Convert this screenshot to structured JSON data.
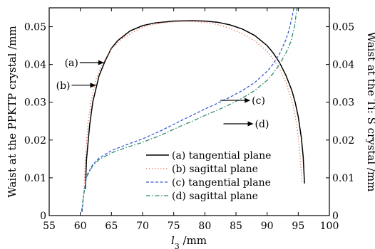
{
  "chart_data": {
    "type": "line",
    "xlabel_main": "l",
    "xlabel_sub": "3",
    "xlabel_unit": " /mm",
    "ylabel_left": "Waist at the PPKTP crystal /mm",
    "ylabel_right": "Waist at the Ti: S crystal /mm",
    "xlim": [
      55,
      100
    ],
    "ylim": [
      0,
      0.055
    ],
    "xticks": [
      "55",
      "60",
      "65",
      "70",
      "75",
      "80",
      "85",
      "90",
      "95",
      "100"
    ],
    "yticks_left": [
      "0",
      "0.01",
      "0.02",
      "0.03",
      "0.04",
      "0.05"
    ],
    "yticks_right": [
      "0",
      "0.01",
      "0.02",
      "0.03",
      "0.04",
      "0.05"
    ],
    "grid": false,
    "legend_position": "bottom-right",
    "series": [
      {
        "name": "(a) tangential plane",
        "label": "(a)",
        "color": "#000000",
        "dash": "solid",
        "axis": "left",
        "x": [
          60.8,
          61.0,
          61.5,
          62.0,
          63.0,
          64.0,
          65.0,
          66.0,
          68.0,
          70.0,
          72.0,
          75.0,
          78.0,
          80.0,
          82.0,
          84.0,
          86.0,
          88.0,
          90.0,
          91.0,
          92.0,
          93.0,
          94.0,
          94.5,
          95.0,
          95.5,
          95.8,
          96.0
        ],
        "y": [
          0.007,
          0.015,
          0.024,
          0.03,
          0.037,
          0.041,
          0.0443,
          0.0463,
          0.0489,
          0.0503,
          0.051,
          0.0515,
          0.0516,
          0.0515,
          0.0512,
          0.0505,
          0.0494,
          0.0477,
          0.045,
          0.043,
          0.0405,
          0.0372,
          0.033,
          0.03,
          0.0262,
          0.0206,
          0.0155,
          0.0085
        ]
      },
      {
        "name": "(b) sagittal plane",
        "label": "(b)",
        "color": "#e8684a",
        "dash": "dotted",
        "axis": "left",
        "x": [
          60.6,
          60.8,
          61.2,
          61.7,
          62.5,
          63.5,
          65.0,
          67.0,
          70.0,
          73.0,
          76.0,
          78.0,
          80.0,
          82.0,
          84.0,
          86.0,
          88.0,
          90.0,
          91.0,
          92.0,
          93.0,
          94.0,
          94.5,
          95.0,
          95.3,
          95.6
        ],
        "y": [
          0.007,
          0.015,
          0.024,
          0.03,
          0.036,
          0.04,
          0.0442,
          0.0472,
          0.0499,
          0.051,
          0.0514,
          0.0514,
          0.0512,
          0.0506,
          0.0496,
          0.0482,
          0.0463,
          0.0435,
          0.0414,
          0.0388,
          0.0353,
          0.0303,
          0.0265,
          0.021,
          0.0155,
          0.0085
        ]
      },
      {
        "name": "(c) tangential plane",
        "label": "(c)",
        "color": "#3b5bdb",
        "dash": "dashed",
        "axis": "right",
        "x": [
          60.3,
          60.5,
          61.0,
          62.0,
          63.0,
          65.0,
          67.0,
          70.0,
          73.0,
          76.0,
          78.0,
          80.0,
          82.0,
          84.0,
          86.0,
          88.0,
          90.0,
          91.0,
          92.0,
          93.0,
          93.5,
          94.0,
          94.3
        ],
        "y": [
          0.001,
          0.005,
          0.0105,
          0.0135,
          0.0152,
          0.0172,
          0.0185,
          0.0203,
          0.0225,
          0.025,
          0.0266,
          0.0282,
          0.0297,
          0.0313,
          0.0331,
          0.0352,
          0.0382,
          0.0402,
          0.0428,
          0.0465,
          0.049,
          0.0525,
          0.055
        ]
      },
      {
        "name": "(d) sagittal plane",
        "label": "(d)",
        "color": "#2e8b6e",
        "dash": "dashdot",
        "axis": "right",
        "x": [
          60.2,
          60.5,
          61.0,
          62.0,
          63.0,
          65.0,
          67.0,
          70.0,
          73.0,
          76.0,
          78.0,
          80.0,
          82.0,
          84.0,
          86.0,
          88.0,
          90.0,
          91.0,
          92.0,
          93.0,
          93.8,
          94.4,
          94.8
        ],
        "y": [
          0.001,
          0.005,
          0.0102,
          0.0132,
          0.0148,
          0.0166,
          0.0178,
          0.0194,
          0.0213,
          0.0236,
          0.025,
          0.0265,
          0.0279,
          0.0294,
          0.0311,
          0.0331,
          0.0358,
          0.0377,
          0.04,
          0.043,
          0.046,
          0.05,
          0.055
        ]
      }
    ],
    "annotations": [
      {
        "text": "(a)",
        "arrow_tip": [
          63.8,
          0.0405
        ],
        "side": "left"
      },
      {
        "text": "(b)",
        "arrow_tip": [
          62.5,
          0.0345
        ],
        "side": "left"
      },
      {
        "text": "(c)",
        "arrow_tip": [
          82.5,
          0.0305
        ],
        "side": "right"
      },
      {
        "text": "(d)",
        "arrow_tip": [
          83.0,
          0.0243
        ],
        "side": "right"
      }
    ]
  }
}
